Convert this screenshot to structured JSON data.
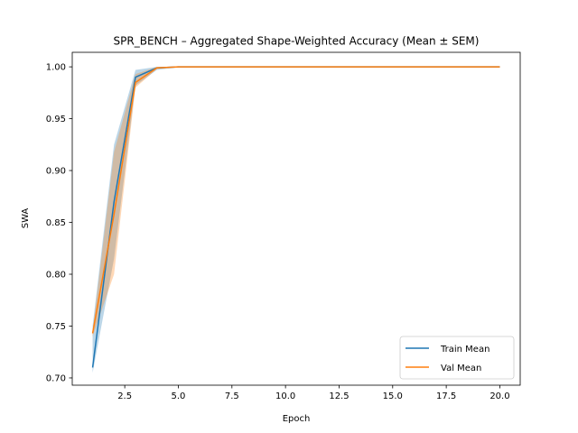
{
  "chart_data": {
    "type": "line",
    "title": "SPR_BENCH – Aggregated Shape-Weighted Accuracy (Mean ± SEM)",
    "xlabel": "Epoch",
    "ylabel": "SWA",
    "xlim": [
      0.05,
      20.95
    ],
    "ylim": [
      0.693,
      1.014
    ],
    "x_ticks": [
      2.5,
      5.0,
      7.5,
      10.0,
      12.5,
      15.0,
      17.5,
      20.0
    ],
    "x_tick_labels": [
      "2.5",
      "5.0",
      "7.5",
      "10.0",
      "12.5",
      "15.0",
      "17.5",
      "20.0"
    ],
    "y_ticks": [
      0.7,
      0.75,
      0.8,
      0.85,
      0.9,
      0.95,
      1.0
    ],
    "y_tick_labels": [
      "0.70",
      "0.75",
      "0.80",
      "0.85",
      "0.90",
      "0.95",
      "1.00"
    ],
    "grid": false,
    "legend_position": "lower right",
    "x": [
      1,
      2,
      3,
      4,
      5,
      6,
      7,
      8,
      9,
      10,
      11,
      12,
      13,
      14,
      15,
      16,
      17,
      18,
      19,
      20
    ],
    "series": [
      {
        "name": "Train Mean",
        "color": "#1f77b4",
        "values": [
          0.71,
          0.87,
          0.99,
          0.999,
          1.0,
          1.0,
          1.0,
          1.0,
          1.0,
          1.0,
          1.0,
          1.0,
          1.0,
          1.0,
          1.0,
          1.0,
          1.0,
          1.0,
          1.0,
          1.0
        ],
        "lower": [
          0.705,
          0.815,
          0.982,
          0.997,
          0.9995,
          1.0,
          1.0,
          1.0,
          1.0,
          1.0,
          1.0,
          1.0,
          1.0,
          1.0,
          1.0,
          1.0,
          1.0,
          1.0,
          1.0,
          1.0
        ],
        "upper": [
          0.75,
          0.925,
          0.997,
          1.0,
          1.0,
          1.0,
          1.0,
          1.0,
          1.0,
          1.0,
          1.0,
          1.0,
          1.0,
          1.0,
          1.0,
          1.0,
          1.0,
          1.0,
          1.0,
          1.0
        ]
      },
      {
        "name": "Val Mean",
        "color": "#ff7f0e",
        "values": [
          0.743,
          0.858,
          0.985,
          0.999,
          1.0,
          1.0,
          1.0,
          1.0,
          1.0,
          1.0,
          1.0,
          1.0,
          1.0,
          1.0,
          1.0,
          1.0,
          1.0,
          1.0,
          1.0,
          1.0
        ],
        "lower": [
          0.74,
          0.8,
          0.98,
          0.998,
          0.9995,
          1.0,
          1.0,
          1.0,
          1.0,
          1.0,
          1.0,
          1.0,
          1.0,
          1.0,
          1.0,
          1.0,
          1.0,
          1.0,
          1.0,
          1.0
        ],
        "upper": [
          0.745,
          0.918,
          0.993,
          1.0,
          1.0,
          1.0,
          1.0,
          1.0,
          1.0,
          1.0,
          1.0,
          1.0,
          1.0,
          1.0,
          1.0,
          1.0,
          1.0,
          1.0,
          1.0,
          1.0
        ]
      }
    ]
  }
}
